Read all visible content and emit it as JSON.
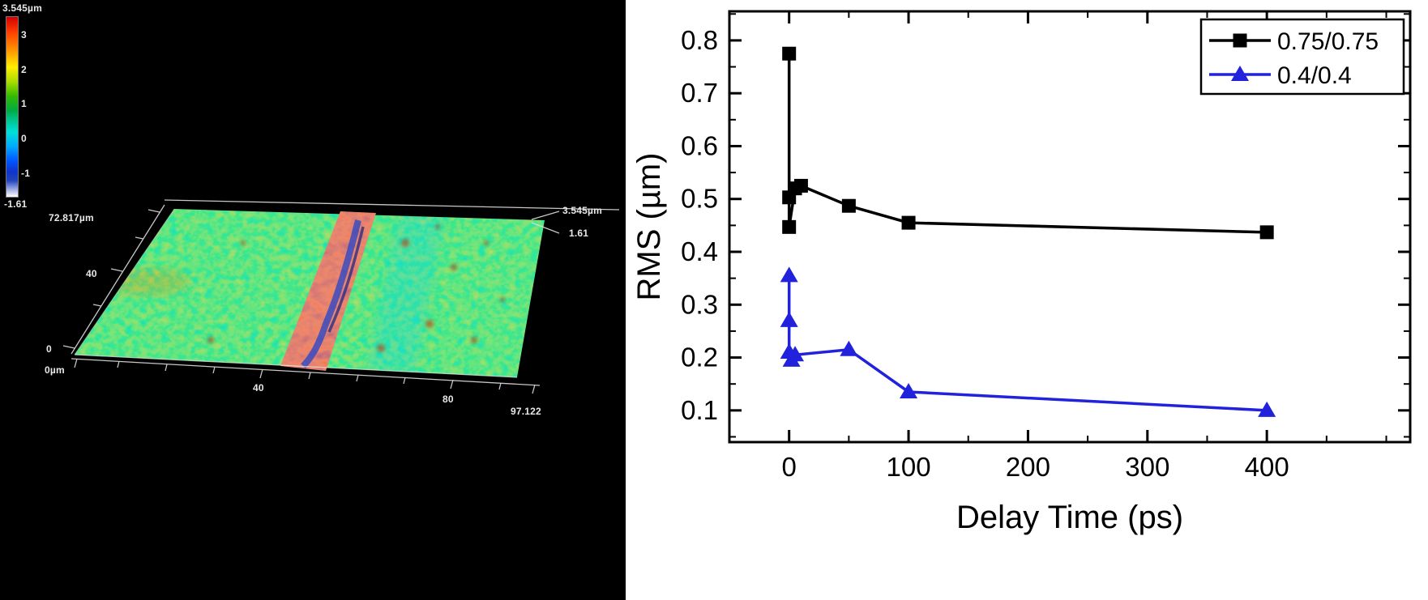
{
  "left_panel": {
    "colorbar": {
      "max_label": "3.545µm",
      "ticks": [
        "3",
        "2",
        "1",
        "0",
        "-1"
      ],
      "min_label": "-1.61"
    },
    "axes": {
      "y_max": "72.817µm",
      "y_mid": "40",
      "y_zero": "0",
      "x_zero": "0µm",
      "x_mid": "40",
      "x_80": "80",
      "x_max": "97.122",
      "z_max": "3.545µm",
      "z_mid": "1.61"
    }
  },
  "chart_data": {
    "type": "line",
    "title": "",
    "xlabel": "Delay Time (ps)",
    "ylabel": "RMS (µm)",
    "xlim": [
      -50,
      520
    ],
    "ylim": [
      0.04,
      0.855
    ],
    "xticks": [
      0,
      100,
      200,
      300,
      400
    ],
    "yticks": [
      0.1,
      0.2,
      0.3,
      0.4,
      0.5,
      0.6,
      0.7,
      0.8
    ],
    "x_minor_step": 50,
    "y_minor_step": 0.05,
    "grid": false,
    "legend_position": "top-right",
    "frame_color": "#000000",
    "series": [
      {
        "name": "0.75/0.75",
        "color": "#000000",
        "marker": "square",
        "line": "solid",
        "x": [
          0,
          0,
          0,
          5,
          10,
          50,
          100,
          400
        ],
        "y": [
          0.775,
          0.503,
          0.447,
          0.52,
          0.525,
          0.487,
          0.455,
          0.437
        ]
      },
      {
        "name": "0.4/0.4",
        "color": "#2222dd",
        "marker": "triangle",
        "line": "solid",
        "x": [
          0,
          0,
          0,
          2,
          5,
          50,
          100,
          400
        ],
        "y": [
          0.355,
          0.27,
          0.21,
          0.195,
          0.205,
          0.215,
          0.135,
          0.1
        ]
      }
    ]
  }
}
